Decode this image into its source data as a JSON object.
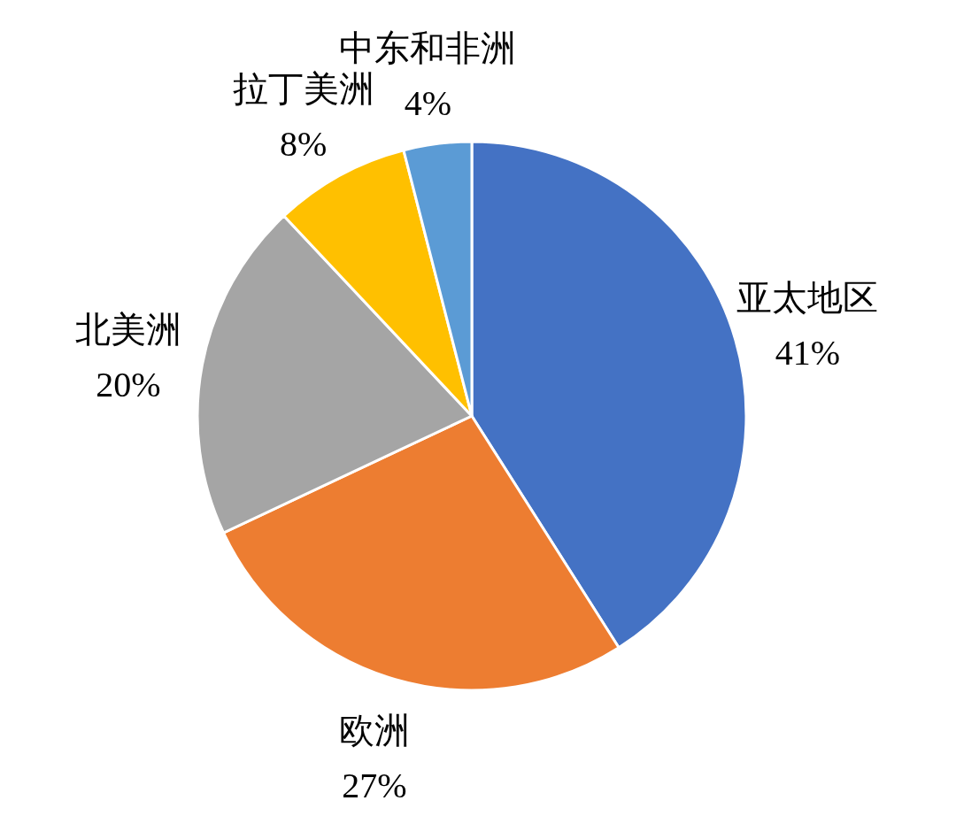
{
  "chart_data": {
    "type": "pie",
    "categories": [
      "亚太地区",
      "欧洲",
      "北美洲",
      "拉丁美洲",
      "中东和非洲"
    ],
    "values": [
      41,
      27,
      20,
      8,
      4
    ],
    "colors": [
      "#4472c4",
      "#ed7d31",
      "#a5a5a5",
      "#ffc000",
      "#5b9bd5"
    ],
    "value_labels": [
      "41%",
      "27%",
      "20%",
      "8%",
      "4%"
    ]
  }
}
